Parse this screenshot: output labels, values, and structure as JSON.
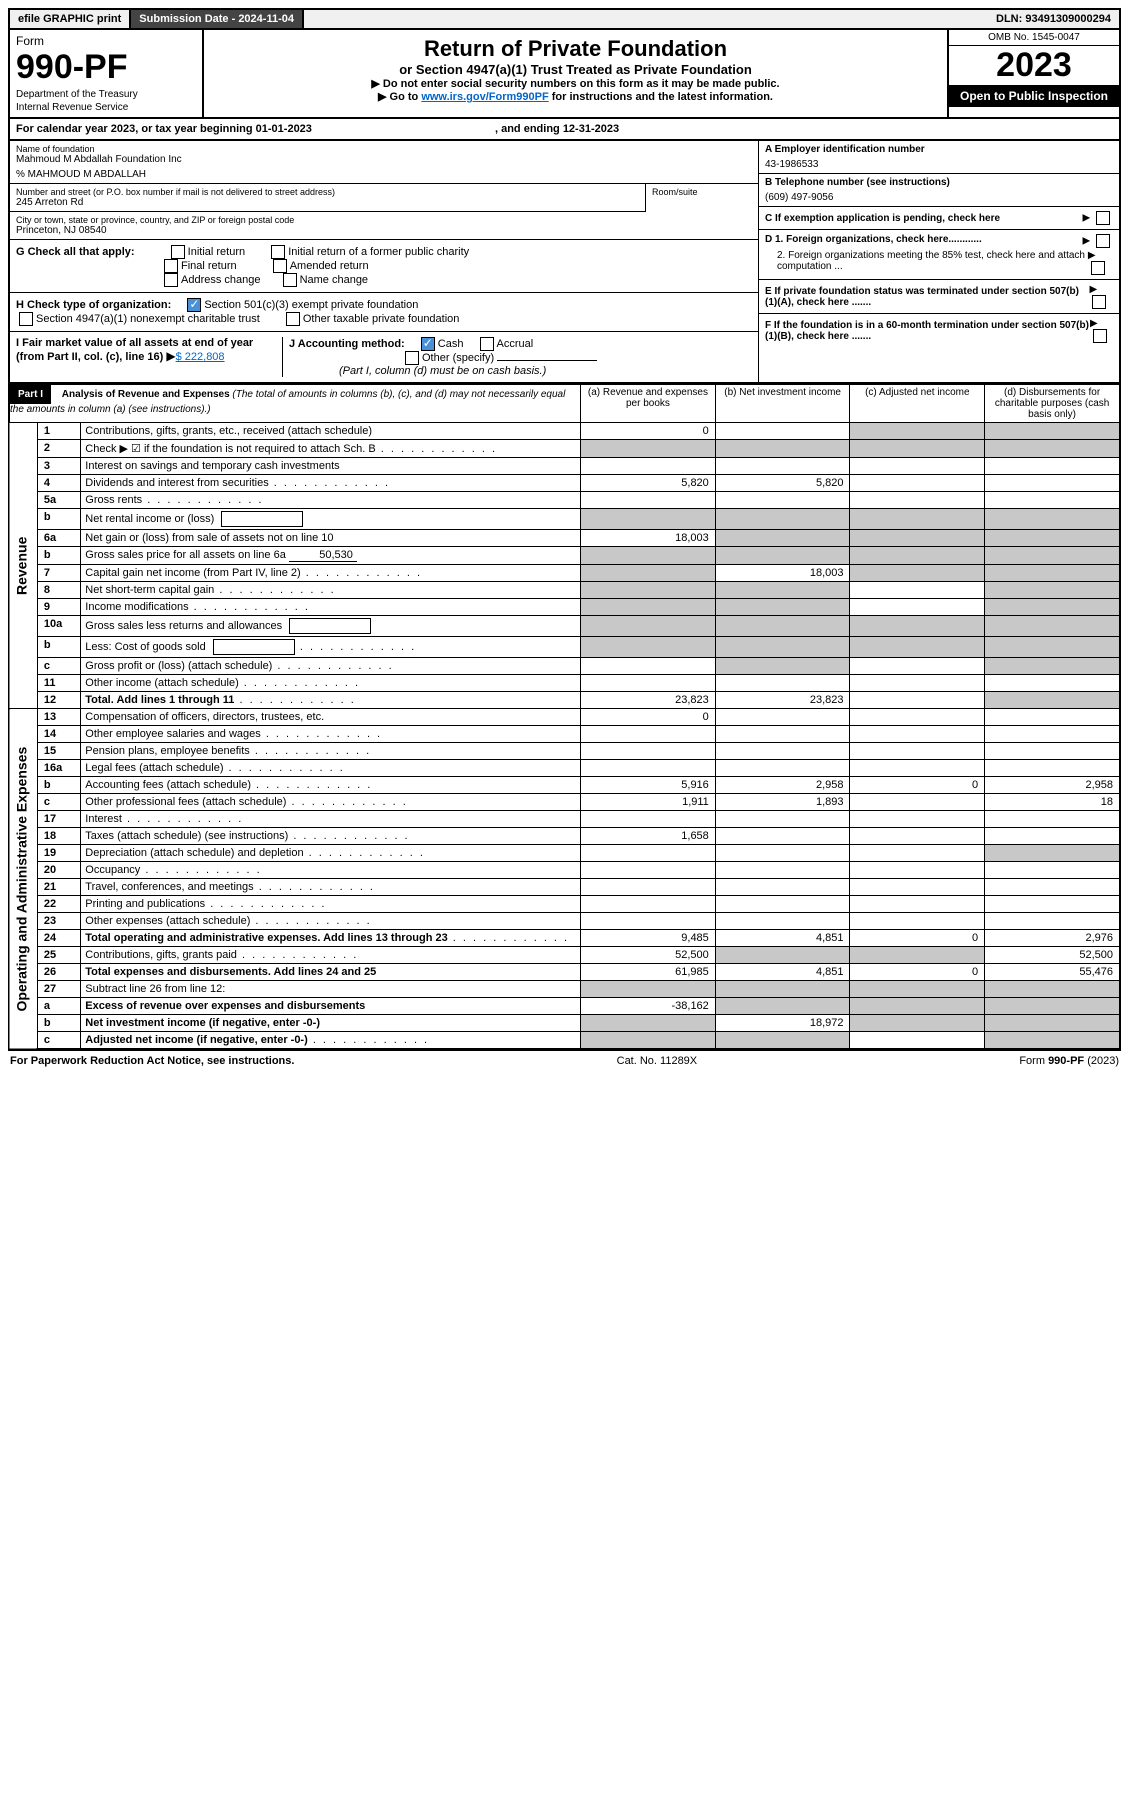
{
  "topbar": {
    "efile": "efile GRAPHIC print",
    "subDateLabel": "Submission Date - 2024-11-04",
    "dln": "DLN: 93491309000294"
  },
  "header": {
    "formWord": "Form",
    "formNum": "990-PF",
    "dept": "Department of the Treasury",
    "irs": "Internal Revenue Service",
    "title": "Return of Private Foundation",
    "subtitle": "or Section 4947(a)(1) Trust Treated as Private Foundation",
    "instr1": "▶ Do not enter social security numbers on this form as it may be made public.",
    "instr2a": "▶ Go to ",
    "instr2link": "www.irs.gov/Form990PF",
    "instr2b": " for instructions and the latest information.",
    "omb": "OMB No. 1545-0047",
    "year": "2023",
    "openPub": "Open to Public Inspection"
  },
  "calYear": {
    "text1": "For calendar year 2023, or tax year beginning 01-01-2023",
    "text2": ", and ending 12-31-2023"
  },
  "info": {
    "nameLbl": "Name of foundation",
    "name": "Mahmoud M Abdallah Foundation Inc",
    "careOf": "% MAHMOUD M ABDALLAH",
    "addrLbl": "Number and street (or P.O. box number if mail is not delivered to street address)",
    "addr": "245 Arreton Rd",
    "roomLbl": "Room/suite",
    "cityLbl": "City or town, state or province, country, and ZIP or foreign postal code",
    "city": "Princeton, NJ  08540",
    "einLbl": "A Employer identification number",
    "ein": "43-1986533",
    "telLbl": "B Telephone number (see instructions)",
    "tel": "(609) 497-9056",
    "cLbl": "C If exemption application is pending, check here",
    "d1": "D 1. Foreign organizations, check here............",
    "d2": "2. Foreign organizations meeting the 85% test, check here and attach computation ...",
    "eLbl": "E  If private foundation status was terminated under section 507(b)(1)(A), check here .......",
    "fLbl": "F  If the foundation is in a 60-month termination under section 507(b)(1)(B), check here .......",
    "gLabel": "G Check all that apply:",
    "gOpts": [
      "Initial return",
      "Initial return of a former public charity",
      "Final return",
      "Amended return",
      "Address change",
      "Name change"
    ],
    "hLabel": "H Check type of organization:",
    "hOpts": [
      "Section 501(c)(3) exempt private foundation",
      "Section 4947(a)(1) nonexempt charitable trust",
      "Other taxable private foundation"
    ],
    "iLabel": "I Fair market value of all assets at end of year (from Part II, col. (c), line 16)",
    "iVal": "$  222,808",
    "jLabel": "J Accounting method:",
    "jOpts": [
      "Cash",
      "Accrual",
      "Other (specify)"
    ],
    "jNote": "(Part I, column (d) must be on cash basis.)"
  },
  "part1": {
    "header": "Part I",
    "title": "Analysis of Revenue and Expenses",
    "titleNote": " (The total of amounts in columns (b), (c), and (d) may not necessarily equal the amounts in column (a) (see instructions).)",
    "colA": "(a)  Revenue and expenses per books",
    "colB": "(b)  Net investment income",
    "colC": "(c)  Adjusted net income",
    "colD": "(d)  Disbursements for charitable purposes (cash basis only)",
    "sideRevenue": "Revenue",
    "sideExpenses": "Operating and Administrative Expenses"
  },
  "rows": [
    {
      "n": "1",
      "d": "Contributions, gifts, grants, etc., received (attach schedule)",
      "a": "0",
      "greyB": false,
      "greyC": true,
      "greyD": true
    },
    {
      "n": "2",
      "d": "Check ▶ ☑ if the foundation is not required to attach Sch. B",
      "dots": true,
      "greyA": true,
      "greyB": true,
      "greyC": true,
      "greyD": true
    },
    {
      "n": "3",
      "d": "Interest on savings and temporary cash investments"
    },
    {
      "n": "4",
      "d": "Dividends and interest from securities",
      "dots": true,
      "a": "5,820",
      "b": "5,820"
    },
    {
      "n": "5a",
      "d": "Gross rents",
      "dots": true
    },
    {
      "n": "b",
      "d": "Net rental income or (loss)",
      "inlineBox": true,
      "greyA": true,
      "greyB": true,
      "greyC": true,
      "greyD": true
    },
    {
      "n": "6a",
      "d": "Net gain or (loss) from sale of assets not on line 10",
      "a": "18,003",
      "greyB": true,
      "greyC": true,
      "greyD": true
    },
    {
      "n": "b",
      "d": "Gross sales price for all assets on line 6a",
      "inlineVal": "50,530",
      "greyA": true,
      "greyB": true,
      "greyC": true,
      "greyD": true
    },
    {
      "n": "7",
      "d": "Capital gain net income (from Part IV, line 2)",
      "dots": true,
      "greyA": true,
      "b": "18,003",
      "greyC": true,
      "greyD": true
    },
    {
      "n": "8",
      "d": "Net short-term capital gain",
      "dots": true,
      "greyA": true,
      "greyB": true,
      "greyD": true
    },
    {
      "n": "9",
      "d": "Income modifications",
      "dots": true,
      "greyA": true,
      "greyB": true,
      "greyD": true
    },
    {
      "n": "10a",
      "d": "Gross sales less returns and allowances",
      "inlineBox": true,
      "greyA": true,
      "greyB": true,
      "greyC": true,
      "greyD": true
    },
    {
      "n": "b",
      "d": "Less: Cost of goods sold",
      "dots": true,
      "inlineBox": true,
      "greyA": true,
      "greyB": true,
      "greyC": true,
      "greyD": true
    },
    {
      "n": "c",
      "d": "Gross profit or (loss) (attach schedule)",
      "dots": true,
      "greyB": true,
      "greyD": true
    },
    {
      "n": "11",
      "d": "Other income (attach schedule)",
      "dots": true
    },
    {
      "n": "12",
      "d": "Total. Add lines 1 through 11",
      "dots": true,
      "bold": true,
      "a": "23,823",
      "b": "23,823",
      "greyD": true
    },
    {
      "n": "13",
      "d": "Compensation of officers, directors, trustees, etc.",
      "a": "0"
    },
    {
      "n": "14",
      "d": "Other employee salaries and wages",
      "dots": true
    },
    {
      "n": "15",
      "d": "Pension plans, employee benefits",
      "dots": true
    },
    {
      "n": "16a",
      "d": "Legal fees (attach schedule)",
      "dots": true
    },
    {
      "n": "b",
      "d": "Accounting fees (attach schedule)",
      "dots": true,
      "a": "5,916",
      "b": "2,958",
      "c": "0",
      "dd": "2,958"
    },
    {
      "n": "c",
      "d": "Other professional fees (attach schedule)",
      "dots": true,
      "a": "1,911",
      "b": "1,893",
      "dd": "18"
    },
    {
      "n": "17",
      "d": "Interest",
      "dots": true
    },
    {
      "n": "18",
      "d": "Taxes (attach schedule) (see instructions)",
      "dots": true,
      "a": "1,658"
    },
    {
      "n": "19",
      "d": "Depreciation (attach schedule) and depletion",
      "dots": true,
      "greyD": true
    },
    {
      "n": "20",
      "d": "Occupancy",
      "dots": true
    },
    {
      "n": "21",
      "d": "Travel, conferences, and meetings",
      "dots": true
    },
    {
      "n": "22",
      "d": "Printing and publications",
      "dots": true
    },
    {
      "n": "23",
      "d": "Other expenses (attach schedule)",
      "dots": true
    },
    {
      "n": "24",
      "d": "Total operating and administrative expenses. Add lines 13 through 23",
      "dots": true,
      "bold": true,
      "a": "9,485",
      "b": "4,851",
      "c": "0",
      "dd": "2,976"
    },
    {
      "n": "25",
      "d": "Contributions, gifts, grants paid",
      "dots": true,
      "a": "52,500",
      "greyB": true,
      "greyC": true,
      "dd": "52,500"
    },
    {
      "n": "26",
      "d": "Total expenses and disbursements. Add lines 24 and 25",
      "bold": true,
      "a": "61,985",
      "b": "4,851",
      "c": "0",
      "dd": "55,476"
    },
    {
      "n": "27",
      "d": "Subtract line 26 from line 12:",
      "greyA": true,
      "greyB": true,
      "greyC": true,
      "greyD": true
    },
    {
      "n": "a",
      "d": "Excess of revenue over expenses and disbursements",
      "bold": true,
      "a": "-38,162",
      "greyB": true,
      "greyC": true,
      "greyD": true
    },
    {
      "n": "b",
      "d": "Net investment income (if negative, enter -0-)",
      "bold": true,
      "greyA": true,
      "b": "18,972",
      "greyC": true,
      "greyD": true
    },
    {
      "n": "c",
      "d": "Adjusted net income (if negative, enter -0-)",
      "dots": true,
      "bold": true,
      "greyA": true,
      "greyB": true,
      "greyD": true
    }
  ],
  "footer": {
    "left": "For Paperwork Reduction Act Notice, see instructions.",
    "mid": "Cat. No. 11289X",
    "right": "Form 990-PF (2023)"
  },
  "part2Note": ""
}
